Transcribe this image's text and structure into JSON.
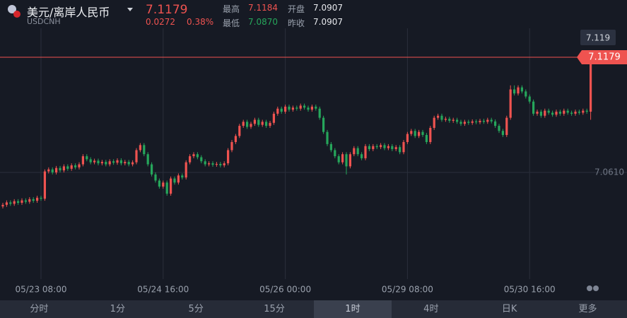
{
  "header": {
    "title": "美元/离岸人民币",
    "symbol": "USDCNH",
    "price": "7.1179",
    "change": "0.0272",
    "change_pct": "0.38%",
    "stats": [
      {
        "label": "最高",
        "value": "7.1184"
      },
      {
        "label": "开盘",
        "value": "7.0907"
      },
      {
        "label": "最低",
        "value": "7.0870"
      },
      {
        "label": "昨收",
        "value": "7.0907"
      }
    ]
  },
  "chart_data": {
    "type": "candlestick",
    "up_color": "#ef5350",
    "down_color": "#26a65b",
    "ylim": [
      7.0083,
      7.1322
    ],
    "yticks": [
      {
        "value": 7.061,
        "label": "7.0610"
      }
    ],
    "grid": true,
    "crosshair_label": "7.119",
    "categories": [
      null,
      null,
      null,
      null,
      null,
      null,
      null,
      null,
      null,
      null,
      "05/23 08:00",
      null,
      null,
      null,
      null,
      null,
      null,
      null,
      null,
      null,
      null,
      null,
      null,
      null,
      null,
      null,
      null,
      null,
      null,
      null,
      null,
      null,
      null,
      null,
      null,
      null,
      null,
      null,
      null,
      null,
      null,
      null,
      "05/24 16:00",
      null,
      null,
      null,
      null,
      null,
      null,
      null,
      null,
      null,
      null,
      null,
      null,
      null,
      null,
      null,
      null,
      null,
      null,
      null,
      null,
      null,
      null,
      null,
      null,
      null,
      null,
      null,
      null,
      null,
      null,
      null,
      "05/26 00:00",
      null,
      null,
      null,
      null,
      null,
      null,
      null,
      null,
      null,
      null,
      null,
      null,
      null,
      null,
      null,
      null,
      null,
      null,
      null,
      null,
      null,
      null,
      null,
      null,
      null,
      null,
      null,
      null,
      null,
      null,
      null,
      "05/29 08:00",
      null,
      null,
      null,
      null,
      null,
      null,
      null,
      null,
      null,
      null,
      null,
      null,
      null,
      null,
      null,
      null,
      null,
      null,
      null,
      null,
      null,
      null,
      null,
      null,
      null,
      null,
      null,
      null,
      null,
      null,
      null,
      "05/30 16:00",
      null,
      null,
      null,
      null,
      null,
      null,
      null,
      null,
      null,
      null,
      null,
      null,
      null,
      null,
      null,
      null
    ],
    "open": [
      7.0442,
      7.045,
      7.0462,
      7.0455,
      7.0468,
      7.046,
      7.0472,
      7.0465,
      7.0478,
      7.047,
      7.0485,
      7.048,
      7.0615,
      7.0625,
      7.061,
      7.0632,
      7.062,
      7.064,
      7.0628,
      7.0645,
      7.0635,
      7.065,
      7.069,
      7.0675,
      7.066,
      7.0668,
      7.0655,
      7.0662,
      7.065,
      7.0665,
      7.0658,
      7.067,
      7.0655,
      7.0662,
      7.065,
      7.066,
      7.072,
      7.0745,
      7.07,
      7.065,
      7.06,
      7.057,
      7.054,
      7.056,
      7.0505,
      7.058,
      7.056,
      7.0595,
      7.0585,
      7.066,
      7.069,
      7.07,
      7.0685,
      7.0665,
      7.065,
      7.0655,
      7.0648,
      7.0652,
      7.0645,
      7.0655,
      7.072,
      7.076,
      7.079,
      7.084,
      7.086,
      7.0835,
      7.085,
      7.087,
      7.0845,
      7.086,
      7.084,
      7.0855,
      7.09,
      7.0925,
      7.091,
      7.0935,
      7.092,
      7.093,
      7.0925,
      7.094,
      7.093,
      7.092,
      7.0935,
      7.0925,
      7.088,
      7.081,
      7.075,
      7.072,
      7.069,
      7.066,
      7.07,
      7.064,
      7.07,
      7.073,
      7.07,
      7.068,
      7.074,
      7.0725,
      7.074,
      7.0735,
      7.0745,
      7.073,
      7.074,
      7.0725,
      7.0735,
      7.071,
      7.076,
      7.08,
      7.0815,
      7.079,
      7.081,
      7.0795,
      7.076,
      7.083,
      7.088,
      7.089,
      7.087,
      7.0875,
      7.0865,
      7.087,
      7.086,
      7.085,
      7.086,
      7.0855,
      7.0862,
      7.0858,
      7.0865,
      7.086,
      7.087,
      7.0862,
      7.084,
      7.0815,
      7.0795,
      7.088,
      7.102,
      7.1,
      7.103,
      7.101,
      7.0985,
      7.096,
      7.09,
      7.091,
      7.089,
      7.0915,
      7.0905,
      7.0895,
      7.091,
      7.09,
      7.0915,
      7.0905,
      7.09,
      7.091,
      7.0905,
      7.0915,
      7.091
    ],
    "high": [
      7.046,
      7.0472,
      7.0472,
      7.0478,
      7.0478,
      7.0482,
      7.0482,
      7.0488,
      7.0488,
      7.0495,
      7.0495,
      7.0625,
      7.0635,
      7.0635,
      7.0642,
      7.0642,
      7.065,
      7.065,
      7.0655,
      7.0655,
      7.066,
      7.07,
      7.07,
      7.0685,
      7.0678,
      7.0678,
      7.0672,
      7.0672,
      7.0675,
      7.0675,
      7.068,
      7.068,
      7.0672,
      7.0672,
      7.067,
      7.073,
      7.0755,
      7.0755,
      7.071,
      7.066,
      7.061,
      7.058,
      7.057,
      7.057,
      7.059,
      7.059,
      7.0605,
      7.0605,
      7.067,
      7.07,
      7.071,
      7.071,
      7.0695,
      7.0675,
      7.0665,
      7.0665,
      7.0662,
      7.0662,
      7.0665,
      7.073,
      7.077,
      7.08,
      7.085,
      7.087,
      7.087,
      7.086,
      7.088,
      7.088,
      7.087,
      7.087,
      7.0865,
      7.091,
      7.0935,
      7.0935,
      7.0945,
      7.0945,
      7.094,
      7.094,
      7.095,
      7.095,
      7.094,
      7.0945,
      7.0945,
      7.0935,
      7.089,
      7.082,
      7.076,
      7.073,
      7.07,
      7.071,
      7.071,
      7.071,
      7.074,
      7.074,
      7.071,
      7.075,
      7.075,
      7.075,
      7.075,
      7.0755,
      7.0755,
      7.075,
      7.075,
      7.0745,
      7.0745,
      7.077,
      7.081,
      7.0825,
      7.0825,
      7.082,
      7.082,
      7.0805,
      7.084,
      7.089,
      7.09,
      7.09,
      7.0885,
      7.0885,
      7.088,
      7.088,
      7.087,
      7.087,
      7.087,
      7.0872,
      7.0872,
      7.0875,
      7.0875,
      7.088,
      7.088,
      7.0872,
      7.085,
      7.0825,
      7.089,
      7.104,
      7.104,
      7.104,
      7.104,
      7.102,
      7.0995,
      7.097,
      7.092,
      7.092,
      7.0925,
      7.0925,
      7.0915,
      7.092,
      7.092,
      7.0925,
      7.0925,
      7.0915,
      7.092,
      7.092,
      7.0925,
      7.0925,
      7.1184
    ],
    "low": [
      7.0432,
      7.044,
      7.0445,
      7.0445,
      7.045,
      7.045,
      7.0455,
      7.0455,
      7.046,
      7.046,
      7.047,
      7.047,
      7.0605,
      7.06,
      7.06,
      7.061,
      7.061,
      7.0618,
      7.0618,
      7.0625,
      7.0625,
      7.064,
      7.0665,
      7.065,
      7.065,
      7.0645,
      7.0645,
      7.064,
      7.064,
      7.0648,
      7.0648,
      7.0645,
      7.0645,
      7.064,
      7.064,
      7.065,
      7.071,
      7.069,
      7.064,
      7.059,
      7.056,
      7.053,
      7.053,
      7.0495,
      7.0495,
      7.055,
      7.055,
      7.0575,
      7.0575,
      7.065,
      7.068,
      7.0675,
      7.0655,
      7.064,
      7.064,
      7.0638,
      7.0638,
      7.0635,
      7.0635,
      7.0645,
      7.071,
      7.075,
      7.078,
      7.083,
      7.0825,
      7.0825,
      7.084,
      7.0835,
      7.0835,
      7.083,
      7.083,
      7.0845,
      7.089,
      7.09,
      7.09,
      7.091,
      7.091,
      7.0915,
      7.0915,
      7.092,
      7.091,
      7.091,
      7.0915,
      7.087,
      7.08,
      7.074,
      7.071,
      7.068,
      7.065,
      7.065,
      7.06,
      7.063,
      7.069,
      7.069,
      7.067,
      7.067,
      7.0715,
      7.0715,
      7.0725,
      7.0725,
      7.072,
      7.072,
      7.0715,
      7.0715,
      7.07,
      7.07,
      7.075,
      7.079,
      7.078,
      7.078,
      7.0785,
      7.075,
      7.075,
      7.082,
      7.087,
      7.086,
      7.086,
      7.0855,
      7.0855,
      7.085,
      7.084,
      7.084,
      7.0845,
      7.0845,
      7.0848,
      7.0848,
      7.085,
      7.085,
      7.0852,
      7.083,
      7.0805,
      7.0785,
      7.0785,
      7.087,
      7.099,
      7.099,
      7.1,
      7.0975,
      7.095,
      7.089,
      7.089,
      7.088,
      7.088,
      7.0895,
      7.0885,
      7.0885,
      7.089,
      7.089,
      7.0895,
      7.089,
      7.089,
      7.0895,
      7.0895,
      7.09,
      7.087
    ],
    "close": [
      7.045,
      7.0462,
      7.0455,
      7.0468,
      7.046,
      7.0472,
      7.0465,
      7.0478,
      7.047,
      7.0485,
      7.048,
      7.0615,
      7.0625,
      7.061,
      7.0632,
      7.062,
      7.064,
      7.0628,
      7.0645,
      7.0635,
      7.065,
      7.069,
      7.0675,
      7.066,
      7.0668,
      7.0655,
      7.0662,
      7.065,
      7.0665,
      7.0658,
      7.067,
      7.0655,
      7.0662,
      7.065,
      7.066,
      7.072,
      7.0745,
      7.07,
      7.065,
      7.06,
      7.057,
      7.054,
      7.056,
      7.0505,
      7.058,
      7.056,
      7.0595,
      7.0585,
      7.066,
      7.069,
      7.07,
      7.0685,
      7.0665,
      7.065,
      7.0655,
      7.0648,
      7.0652,
      7.0645,
      7.0655,
      7.072,
      7.076,
      7.079,
      7.084,
      7.086,
      7.0835,
      7.085,
      7.087,
      7.0845,
      7.086,
      7.084,
      7.0855,
      7.09,
      7.0925,
      7.091,
      7.0935,
      7.092,
      7.093,
      7.0925,
      7.094,
      7.093,
      7.092,
      7.0935,
      7.0925,
      7.088,
      7.081,
      7.075,
      7.072,
      7.069,
      7.066,
      7.07,
      7.064,
      7.07,
      7.073,
      7.07,
      7.068,
      7.074,
      7.0725,
      7.074,
      7.0735,
      7.0745,
      7.073,
      7.074,
      7.0725,
      7.0735,
      7.071,
      7.076,
      7.08,
      7.0815,
      7.079,
      7.081,
      7.0795,
      7.076,
      7.083,
      7.088,
      7.089,
      7.087,
      7.0875,
      7.0865,
      7.087,
      7.086,
      7.085,
      7.086,
      7.0855,
      7.0862,
      7.0858,
      7.0865,
      7.086,
      7.087,
      7.0862,
      7.084,
      7.0815,
      7.0795,
      7.088,
      7.102,
      7.1,
      7.103,
      7.101,
      7.0985,
      7.096,
      7.09,
      7.091,
      7.089,
      7.0915,
      7.0905,
      7.0895,
      7.091,
      7.09,
      7.0915,
      7.0905,
      7.09,
      7.091,
      7.0905,
      7.0915,
      7.091,
      7.1179
    ]
  },
  "tabs": [
    "分时",
    "1分",
    "5分",
    "15分",
    "1时",
    "4时",
    "日K",
    "更多"
  ],
  "active_tab": 4
}
